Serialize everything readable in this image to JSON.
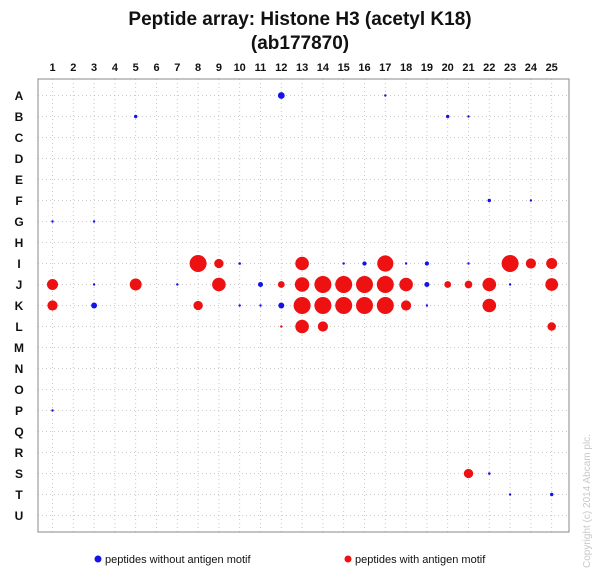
{
  "chart_data": {
    "type": "scatter",
    "title_line1": "Peptide array:  Histone H3 (acetyl K18)",
    "title_line2": "(ab177870)",
    "columns": [
      "1",
      "2",
      "3",
      "4",
      "5",
      "6",
      "7",
      "8",
      "9",
      "10",
      "11",
      "12",
      "13",
      "14",
      "15",
      "16",
      "17",
      "18",
      "19",
      "20",
      "21",
      "22",
      "23",
      "24",
      "25"
    ],
    "rows": [
      "A",
      "B",
      "C",
      "D",
      "E",
      "F",
      "G",
      "H",
      "I",
      "J",
      "K",
      "L",
      "M",
      "N",
      "O",
      "P",
      "Q",
      "R",
      "S",
      "T",
      "U"
    ],
    "legend": [
      {
        "label": "peptides without antigen motif",
        "color": "#1414e6"
      },
      {
        "label": "peptides with antigen motif",
        "color": "#ee1111"
      }
    ],
    "copyright": "Copyright (c) 2014 Abcam plc.",
    "grid": true,
    "value_scale": "spot intensity 0-1 (1 = largest spot)",
    "series": [
      {
        "name": "peptides without antigen motif",
        "color": "#1414e6",
        "points": [
          {
            "row": "A",
            "col": 12,
            "value": 0.4
          },
          {
            "row": "A",
            "col": 17,
            "value": 0.1
          },
          {
            "row": "B",
            "col": 5,
            "value": 0.2
          },
          {
            "row": "B",
            "col": 20,
            "value": 0.2
          },
          {
            "row": "B",
            "col": 21,
            "value": 0.12
          },
          {
            "row": "F",
            "col": 22,
            "value": 0.2
          },
          {
            "row": "F",
            "col": 24,
            "value": 0.12
          },
          {
            "row": "G",
            "col": 1,
            "value": 0.1
          },
          {
            "row": "G",
            "col": 3,
            "value": 0.12
          },
          {
            "row": "I",
            "col": 10,
            "value": 0.15
          },
          {
            "row": "I",
            "col": 15,
            "value": 0.12
          },
          {
            "row": "I",
            "col": 16,
            "value": 0.25
          },
          {
            "row": "I",
            "col": 18,
            "value": 0.12
          },
          {
            "row": "I",
            "col": 19,
            "value": 0.25
          },
          {
            "row": "I",
            "col": 21,
            "value": 0.12
          },
          {
            "row": "J",
            "col": 3,
            "value": 0.12
          },
          {
            "row": "J",
            "col": 7,
            "value": 0.12
          },
          {
            "row": "J",
            "col": 11,
            "value": 0.3
          },
          {
            "row": "J",
            "col": 19,
            "value": 0.3
          },
          {
            "row": "J",
            "col": 23,
            "value": 0.12
          },
          {
            "row": "K",
            "col": 3,
            "value": 0.35
          },
          {
            "row": "K",
            "col": 10,
            "value": 0.12
          },
          {
            "row": "K",
            "col": 11,
            "value": 0.12
          },
          {
            "row": "K",
            "col": 12,
            "value": 0.35
          },
          {
            "row": "K",
            "col": 19,
            "value": 0.12
          },
          {
            "row": "P",
            "col": 1,
            "value": 0.12
          },
          {
            "row": "S",
            "col": 22,
            "value": 0.15
          },
          {
            "row": "T",
            "col": 23,
            "value": 0.1
          },
          {
            "row": "T",
            "col": 25,
            "value": 0.2
          }
        ]
      },
      {
        "name": "peptides with antigen motif",
        "color": "#ee1111",
        "points": [
          {
            "row": "I",
            "col": 8,
            "value": 1.0
          },
          {
            "row": "I",
            "col": 9,
            "value": 0.55
          },
          {
            "row": "I",
            "col": 13,
            "value": 0.8
          },
          {
            "row": "I",
            "col": 17,
            "value": 0.95
          },
          {
            "row": "I",
            "col": 23,
            "value": 1.0
          },
          {
            "row": "I",
            "col": 24,
            "value": 0.6
          },
          {
            "row": "I",
            "col": 25,
            "value": 0.65
          },
          {
            "row": "J",
            "col": 1,
            "value": 0.65
          },
          {
            "row": "J",
            "col": 5,
            "value": 0.7
          },
          {
            "row": "J",
            "col": 9,
            "value": 0.8
          },
          {
            "row": "J",
            "col": 12,
            "value": 0.4
          },
          {
            "row": "J",
            "col": 13,
            "value": 0.85
          },
          {
            "row": "J",
            "col": 14,
            "value": 1.0
          },
          {
            "row": "J",
            "col": 15,
            "value": 1.0
          },
          {
            "row": "J",
            "col": 16,
            "value": 1.0
          },
          {
            "row": "J",
            "col": 17,
            "value": 1.0
          },
          {
            "row": "J",
            "col": 18,
            "value": 0.8
          },
          {
            "row": "J",
            "col": 20,
            "value": 0.4
          },
          {
            "row": "J",
            "col": 21,
            "value": 0.45
          },
          {
            "row": "J",
            "col": 22,
            "value": 0.8
          },
          {
            "row": "J",
            "col": 25,
            "value": 0.75
          },
          {
            "row": "K",
            "col": 1,
            "value": 0.6
          },
          {
            "row": "K",
            "col": 8,
            "value": 0.55
          },
          {
            "row": "K",
            "col": 13,
            "value": 1.0
          },
          {
            "row": "K",
            "col": 14,
            "value": 1.0
          },
          {
            "row": "K",
            "col": 15,
            "value": 1.0
          },
          {
            "row": "K",
            "col": 16,
            "value": 1.0
          },
          {
            "row": "K",
            "col": 17,
            "value": 1.0
          },
          {
            "row": "K",
            "col": 18,
            "value": 0.6
          },
          {
            "row": "K",
            "col": 22,
            "value": 0.8
          },
          {
            "row": "L",
            "col": 12,
            "value": 0.12
          },
          {
            "row": "L",
            "col": 13,
            "value": 0.8
          },
          {
            "row": "L",
            "col": 14,
            "value": 0.6
          },
          {
            "row": "L",
            "col": 25,
            "value": 0.5
          },
          {
            "row": "S",
            "col": 21,
            "value": 0.55
          }
        ]
      }
    ]
  }
}
